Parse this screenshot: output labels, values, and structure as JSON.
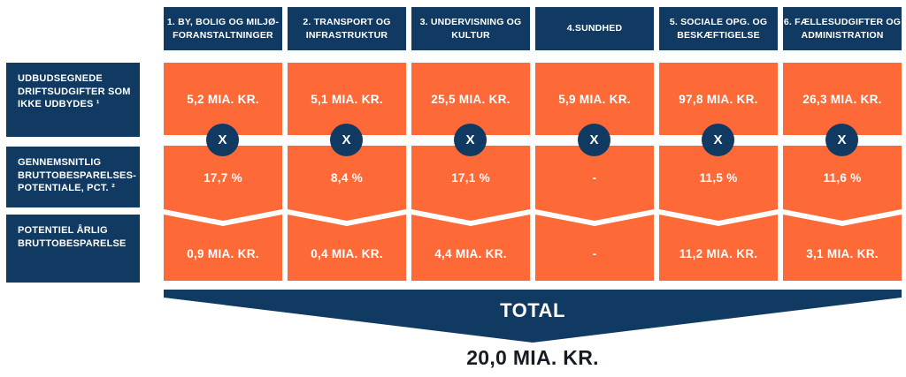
{
  "colors": {
    "navy": "#113a62",
    "orange": "#fd6a38",
    "white": "#ffffff",
    "total_value_text": "#171c24"
  },
  "row_labels": [
    {
      "label": "UDBUDSEGNEDE\nDRIFTSUDGIFTER SOM\nIKKE UDBYDES ¹"
    },
    {
      "label": "GENNEMSNITLIG\nBRUTTOBESPARELSES-\nPOTENTIALE, PCT. ²"
    },
    {
      "label": "POTENTIEL ÅRLIG\nBRUTTOBESPARELSE"
    }
  ],
  "operator": "X",
  "columns": [
    {
      "header": "1. BY, BOLIG OG MILJØ-\nFORANSTALTNINGER",
      "values": [
        "5,2 MIA. KR.",
        "17,7 %",
        "0,9 MIA. KR."
      ]
    },
    {
      "header": "2. TRANSPORT OG\nINFRASTRUKTUR",
      "values": [
        "5,1 MIA. KR.",
        "8,4 %",
        "0,4 MIA. KR."
      ]
    },
    {
      "header": "3. UNDERVISNING OG\nKULTUR",
      "values": [
        "25,5 MIA. KR.",
        "17,1 %",
        "4,4 MIA. KR."
      ]
    },
    {
      "header": "4.SUNDHED",
      "values": [
        "5,9 MIA. KR.",
        "-",
        "-"
      ]
    },
    {
      "header": "5. SOCIALE OPG. OG\nBESKÆFTIGELSE",
      "values": [
        "97,8 MIA. KR.",
        "11,5 %",
        "11,2 MIA. KR."
      ]
    },
    {
      "header": "6. FÆLLESUDGIFTER OG\nADMINISTRATION",
      "values": [
        "26,3 MIA. KR.",
        "11,6 %",
        "3,1 MIA. KR."
      ]
    }
  ],
  "total": {
    "label": "TOTAL",
    "value": "20,0 MIA. KR."
  }
}
